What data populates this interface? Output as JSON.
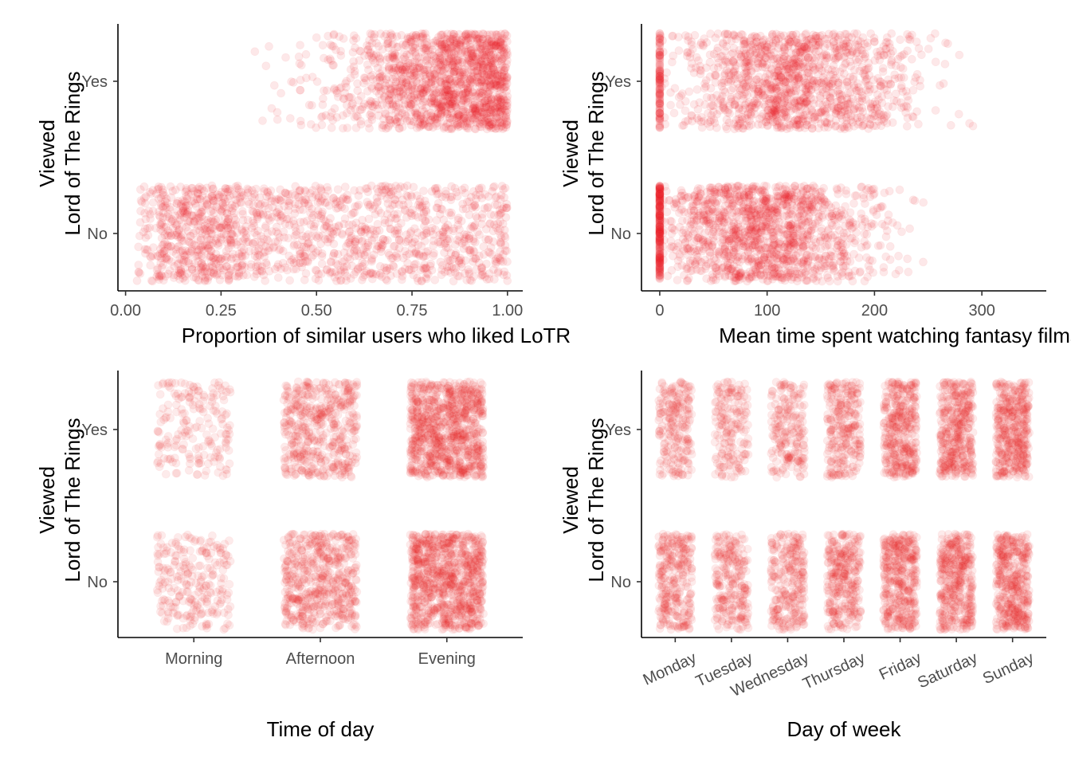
{
  "style": {
    "point_color": "#EE1C25",
    "point_alpha": 0.1
  },
  "panels": [
    {
      "id": "similar",
      "type": "scatter",
      "ylabel_lines": [
        "Viewed",
        "Lord of The Rings"
      ],
      "xlabel": "Proportion of similar users who liked LoTR",
      "y_categories": [
        "No",
        "Yes"
      ],
      "x_ticks": [
        {
          "value": 0.0,
          "label": "0.00"
        },
        {
          "value": 0.25,
          "label": "0.25"
        },
        {
          "value": 0.5,
          "label": "0.50"
        },
        {
          "value": 0.75,
          "label": "0.75"
        },
        {
          "value": 1.0,
          "label": "1.00"
        }
      ],
      "xlim": [
        -0.02,
        1.04
      ]
    },
    {
      "id": "time_spent",
      "type": "scatter",
      "ylabel_lines": [
        "Viewed",
        "Lord of The Rings"
      ],
      "xlabel": "Mean time spent watching fantasy films",
      "y_categories": [
        "No",
        "Yes"
      ],
      "x_ticks": [
        {
          "value": 0,
          "label": "0"
        },
        {
          "value": 100,
          "label": "100"
        },
        {
          "value": 200,
          "label": "200"
        },
        {
          "value": 300,
          "label": "300"
        }
      ],
      "xlim": [
        -17,
        360
      ]
    },
    {
      "id": "time_of_day",
      "type": "scatter",
      "ylabel_lines": [
        "Viewed",
        "Lord of The Rings"
      ],
      "xlabel": "Time of day",
      "y_categories": [
        "No",
        "Yes"
      ],
      "x_categories": [
        "Morning",
        "Afternoon",
        "Evening"
      ],
      "x_rotate": 0,
      "density": {
        "Yes": [
          0.22,
          0.55,
          1.0
        ],
        "No": [
          0.28,
          0.62,
          1.0
        ]
      }
    },
    {
      "id": "day_of_week",
      "type": "scatter",
      "ylabel_lines": [
        "Viewed",
        "Lord of The Rings"
      ],
      "xlabel": "Day of week",
      "y_categories": [
        "No",
        "Yes"
      ],
      "x_categories": [
        "Monday",
        "Tuesday",
        "Wednesday",
        "Thursday",
        "Friday",
        "Saturday",
        "Sunday"
      ],
      "x_rotate": -25,
      "density": {
        "Yes": [
          0.55,
          0.45,
          0.5,
          0.65,
          0.9,
          0.95,
          1.0
        ],
        "No": [
          0.7,
          0.6,
          0.65,
          0.75,
          0.95,
          0.95,
          1.0
        ]
      }
    }
  ]
}
